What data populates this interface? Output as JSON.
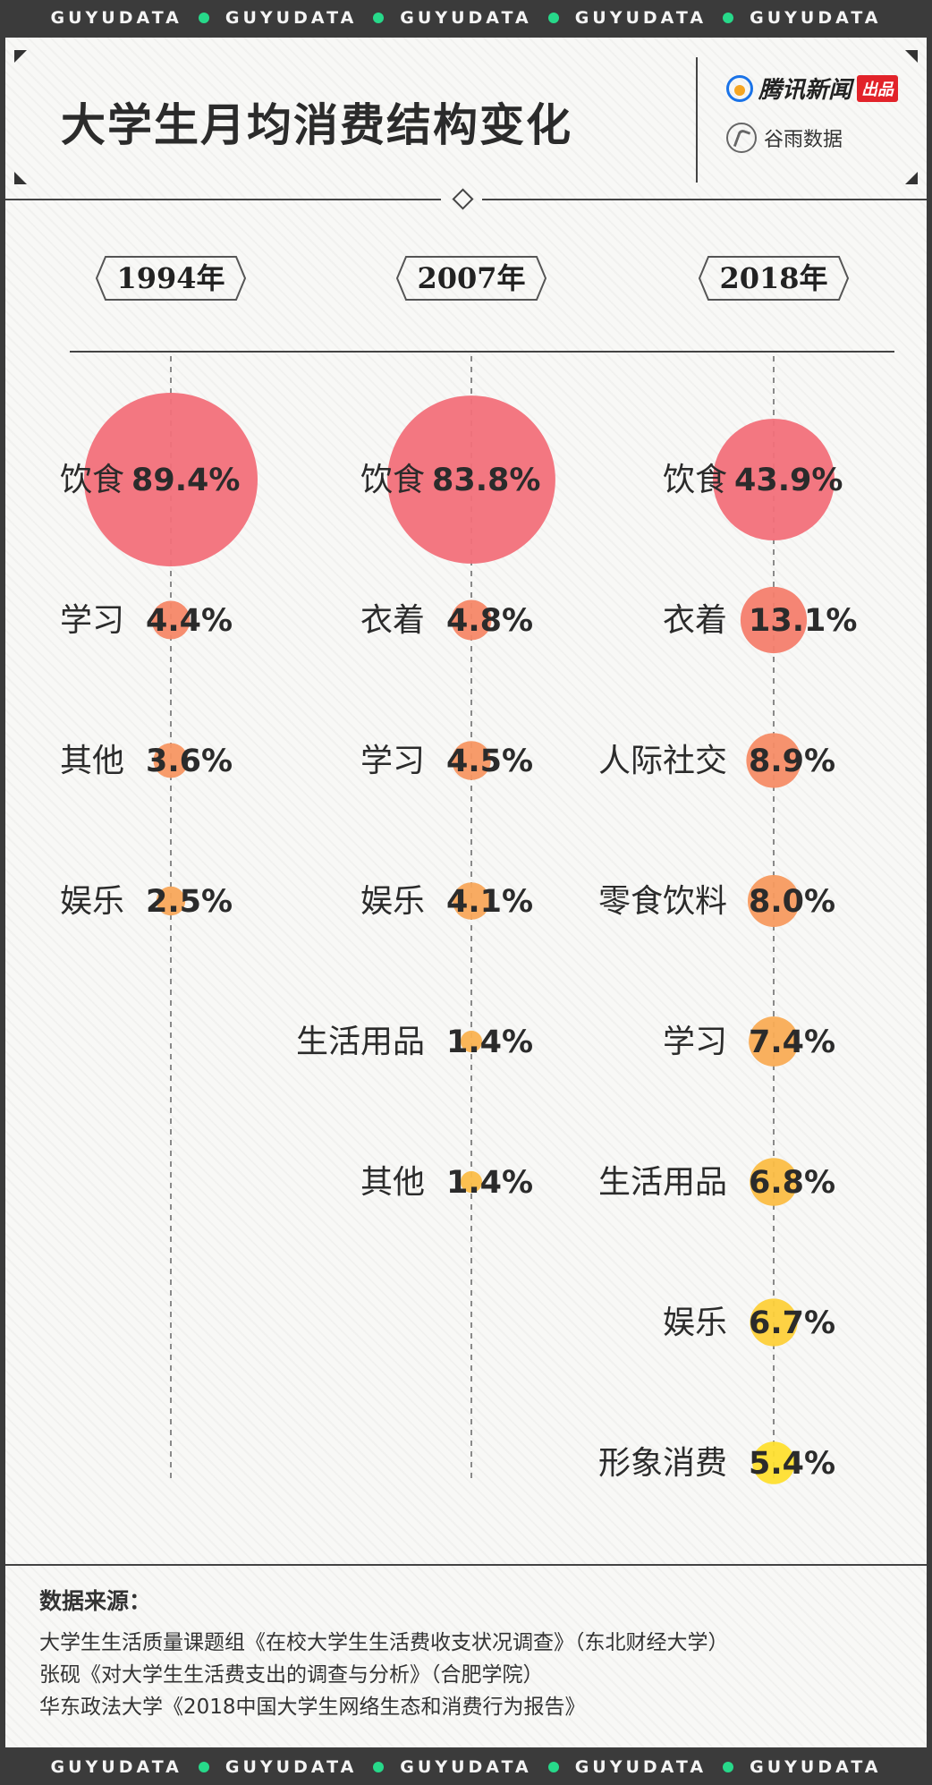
{
  "band_text": "GUYUDATA",
  "header": {
    "title": "大学生月均消费结构变化",
    "publisher": "腾讯新闻",
    "publisher_badge": "出品",
    "producer": "谷雨数据"
  },
  "chart_data": {
    "type": "bubble",
    "title": "大学生月均消费结构变化",
    "unit": "%",
    "groups": [
      {
        "year": "1994年",
        "items": [
          {
            "label": "饮食",
            "value": 89.4,
            "display": "89.4%",
            "color": "#f2707a"
          },
          {
            "label": "学习",
            "value": 4.4,
            "display": "4.4%",
            "color": "#f58767"
          },
          {
            "label": "其他",
            "value": 3.6,
            "display": "3.6%",
            "color": "#f79662"
          },
          {
            "label": "娱乐",
            "value": 2.5,
            "display": "2.5%",
            "color": "#f8a65a"
          }
        ]
      },
      {
        "year": "2007年",
        "items": [
          {
            "label": "饮食",
            "value": 83.8,
            "display": "83.8%",
            "color": "#f2707a"
          },
          {
            "label": "衣着",
            "value": 4.8,
            "display": "4.8%",
            "color": "#f58767"
          },
          {
            "label": "学习",
            "value": 4.5,
            "display": "4.5%",
            "color": "#f79662"
          },
          {
            "label": "娱乐",
            "value": 4.1,
            "display": "4.1%",
            "color": "#f8a65a"
          },
          {
            "label": "生活用品",
            "value": 1.4,
            "display": "1.4%",
            "color": "#fab250"
          },
          {
            "label": "其他",
            "value": 1.4,
            "display": "1.4%",
            "color": "#fbbd48"
          }
        ]
      },
      {
        "year": "2018年",
        "items": [
          {
            "label": "饮食",
            "value": 43.9,
            "display": "43.9%",
            "color": "#f2707a"
          },
          {
            "label": "衣着",
            "value": 13.1,
            "display": "13.1%",
            "color": "#f47e6d"
          },
          {
            "label": "人际社交",
            "value": 8.9,
            "display": "8.9%",
            "color": "#f58c66"
          },
          {
            "label": "零食饮料",
            "value": 8.0,
            "display": "8.0%",
            "color": "#f79a5f"
          },
          {
            "label": "学习",
            "value": 7.4,
            "display": "7.4%",
            "color": "#f9ac55"
          },
          {
            "label": "生活用品",
            "value": 6.8,
            "display": "6.8%",
            "color": "#fbbd45"
          },
          {
            "label": "娱乐",
            "value": 6.7,
            "display": "6.7%",
            "color": "#fdd03a"
          },
          {
            "label": "形象消费",
            "value": 5.4,
            "display": "5.4%",
            "color": "#fedf2f"
          }
        ]
      }
    ]
  },
  "footer": {
    "source_title": "数据来源：",
    "sources": [
      "大学生生活质量课题组《在校大学生生活费收支状况调查》（东北财经大学）",
      "张砚《对大学生生活费支出的调查与分析》（合肥学院）",
      "华东政法大学《2018中国大学生网络生态和消费行为报告》"
    ]
  }
}
